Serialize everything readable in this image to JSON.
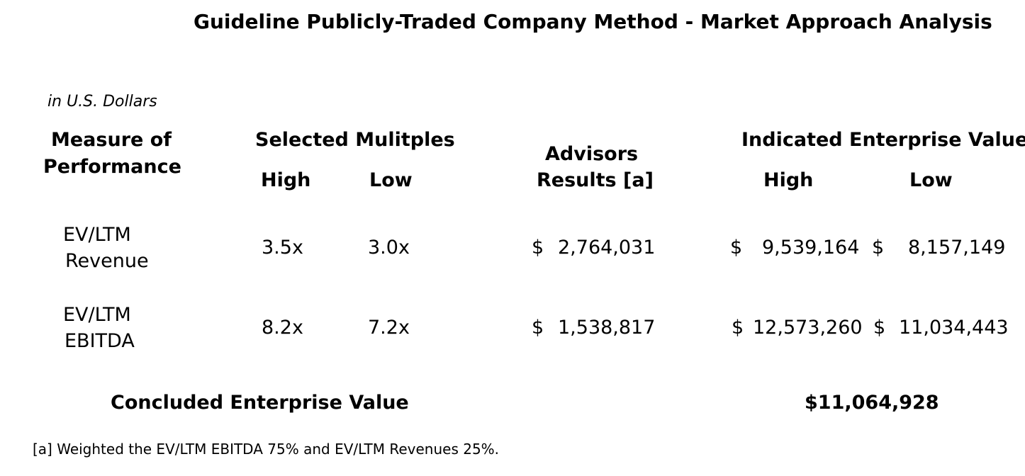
{
  "title": "Guideline Publicly-Traded Company Method - Market Approach Analysis",
  "units_note": "in U.S. Dollars",
  "headers": {
    "measure_line1": "Measure of",
    "measure_line2": "Performance",
    "selected_multiples": "Selected Mulitples",
    "high": "High",
    "low": "Low",
    "advisors_line1": "Advisors",
    "advisors_line2": "Results [a]",
    "indicated_ev": "Indicated Enterprise Value",
    "ev_high": "High",
    "ev_low": "Low"
  },
  "rows": [
    {
      "measure_line1": "EV/LTM",
      "measure_line2": "Revenue",
      "multiple_high": "3.5x",
      "multiple_low": "3.0x",
      "advisors_currency": "$",
      "advisors_value": "2,764,031",
      "ev_high_currency": "$",
      "ev_high_value": "9,539,164",
      "ev_low_currency": "$",
      "ev_low_value": "8,157,149"
    },
    {
      "measure_line1": "EV/LTM",
      "measure_line2": "EBITDA",
      "multiple_high": "8.2x",
      "multiple_low": "7.2x",
      "advisors_currency": "$",
      "advisors_value": "1,538,817",
      "ev_high_currency": "$",
      "ev_high_value": "12,573,260",
      "ev_low_currency": "$",
      "ev_low_value": "11,034,443"
    }
  ],
  "concluded": {
    "label": "Concluded Enterprise Value",
    "value": "$11,064,928"
  },
  "footnote": "[a] Weighted the EV/LTM EBITDA 75% and EV/LTM Revenues 25%."
}
